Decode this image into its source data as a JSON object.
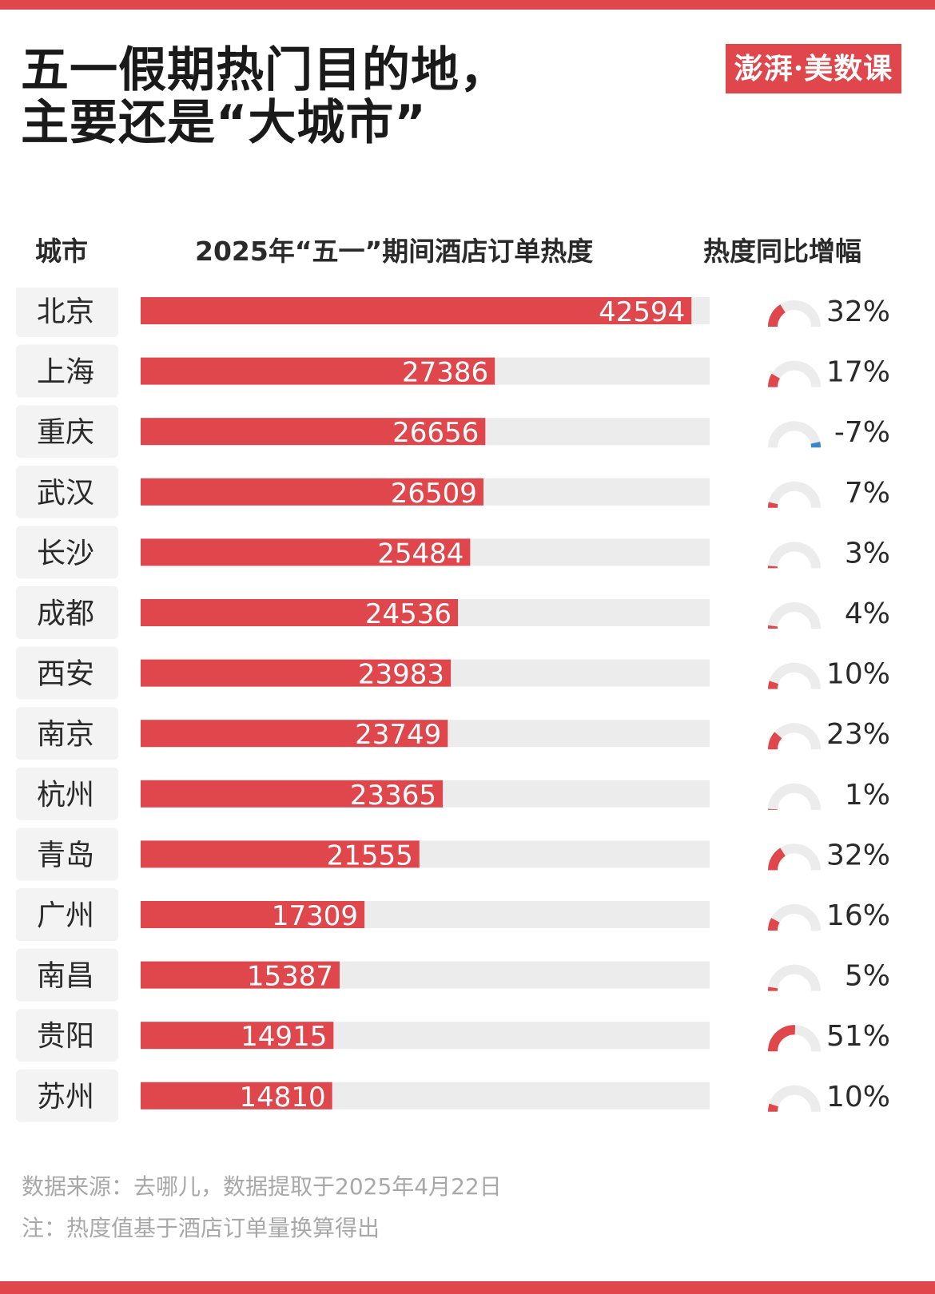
{
  "title_lines": [
    "五一假期热门目的地，",
    "主要还是“大城市”"
  ],
  "logo_text": "澎湃·美数课",
  "headers": {
    "city": "城市",
    "metric": "2025年“五一”期间酒店订单热度",
    "growth": "热度同比增幅"
  },
  "footnotes": {
    "source": "数据来源：去哪儿，数据提取于2025年4月22日",
    "note": "注：热度值基于酒店订单量换算得出"
  },
  "colors": {
    "accent": "#e0474c",
    "track": "#ececec",
    "negative": "#3b86c9",
    "label_bg": "#f3f3f3"
  },
  "chart_data": {
    "type": "bar",
    "orientation": "horizontal",
    "categories": [
      "北京",
      "上海",
      "重庆",
      "武汉",
      "长沙",
      "成都",
      "西安",
      "南京",
      "杭州",
      "青岛",
      "广州",
      "南昌",
      "贵阳",
      "苏州"
    ],
    "series": [
      {
        "values": [
          42594,
          27386,
          26656,
          26509,
          25484,
          24536,
          23983,
          23749,
          23365,
          21555,
          17309,
          15387,
          14915,
          14810
        ]
      }
    ],
    "growth_labels": [
      "32%",
      "17%",
      "-7%",
      "7%",
      "3%",
      "4%",
      "10%",
      "23%",
      "1%",
      "32%",
      "16%",
      "5%",
      "51%",
      "10%"
    ],
    "growth_values": [
      32,
      17,
      -7,
      7,
      3,
      4,
      10,
      23,
      1,
      32,
      16,
      5,
      51,
      10
    ],
    "xlim": [
      0,
      44000
    ],
    "gauge_scale_max": 100,
    "grid": false,
    "legend": "none"
  }
}
